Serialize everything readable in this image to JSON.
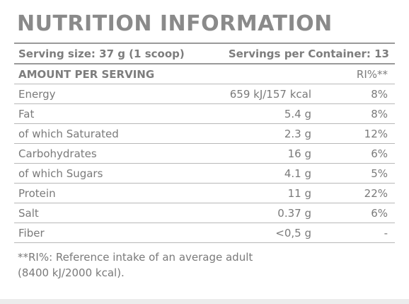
{
  "title": "NUTRITION INFORMATION",
  "serving": {
    "size_label": "Serving size: 37 g (1 scoop)",
    "servings_label": "Servings per Container: 13"
  },
  "amount_header": {
    "label": "AMOUNT PER SERVING",
    "ri_label": "RI%**"
  },
  "rows": [
    {
      "name": "Energy",
      "amount": "659 kJ/157 kcal",
      "ri": "8%"
    },
    {
      "name": "Fat",
      "amount": "5.4 g",
      "ri": "8%"
    },
    {
      "name": "of which Saturated",
      "amount": "2.3 g",
      "ri": "12%"
    },
    {
      "name": "Carbohydrates",
      "amount": "16 g",
      "ri": "6%"
    },
    {
      "name": "of which Sugars",
      "amount": "4.1 g",
      "ri": "5%"
    },
    {
      "name": "Protein",
      "amount": "11 g",
      "ri": "22%"
    },
    {
      "name": "Salt",
      "amount": "0.37 g",
      "ri": "6%"
    },
    {
      "name": "Fiber",
      "amount": "<0,5 g",
      "ri": "-"
    }
  ],
  "footnote": {
    "line1": "**RI%: Reference intake of an average adult",
    "line2": "(8400 kJ/2000 kcal)."
  }
}
